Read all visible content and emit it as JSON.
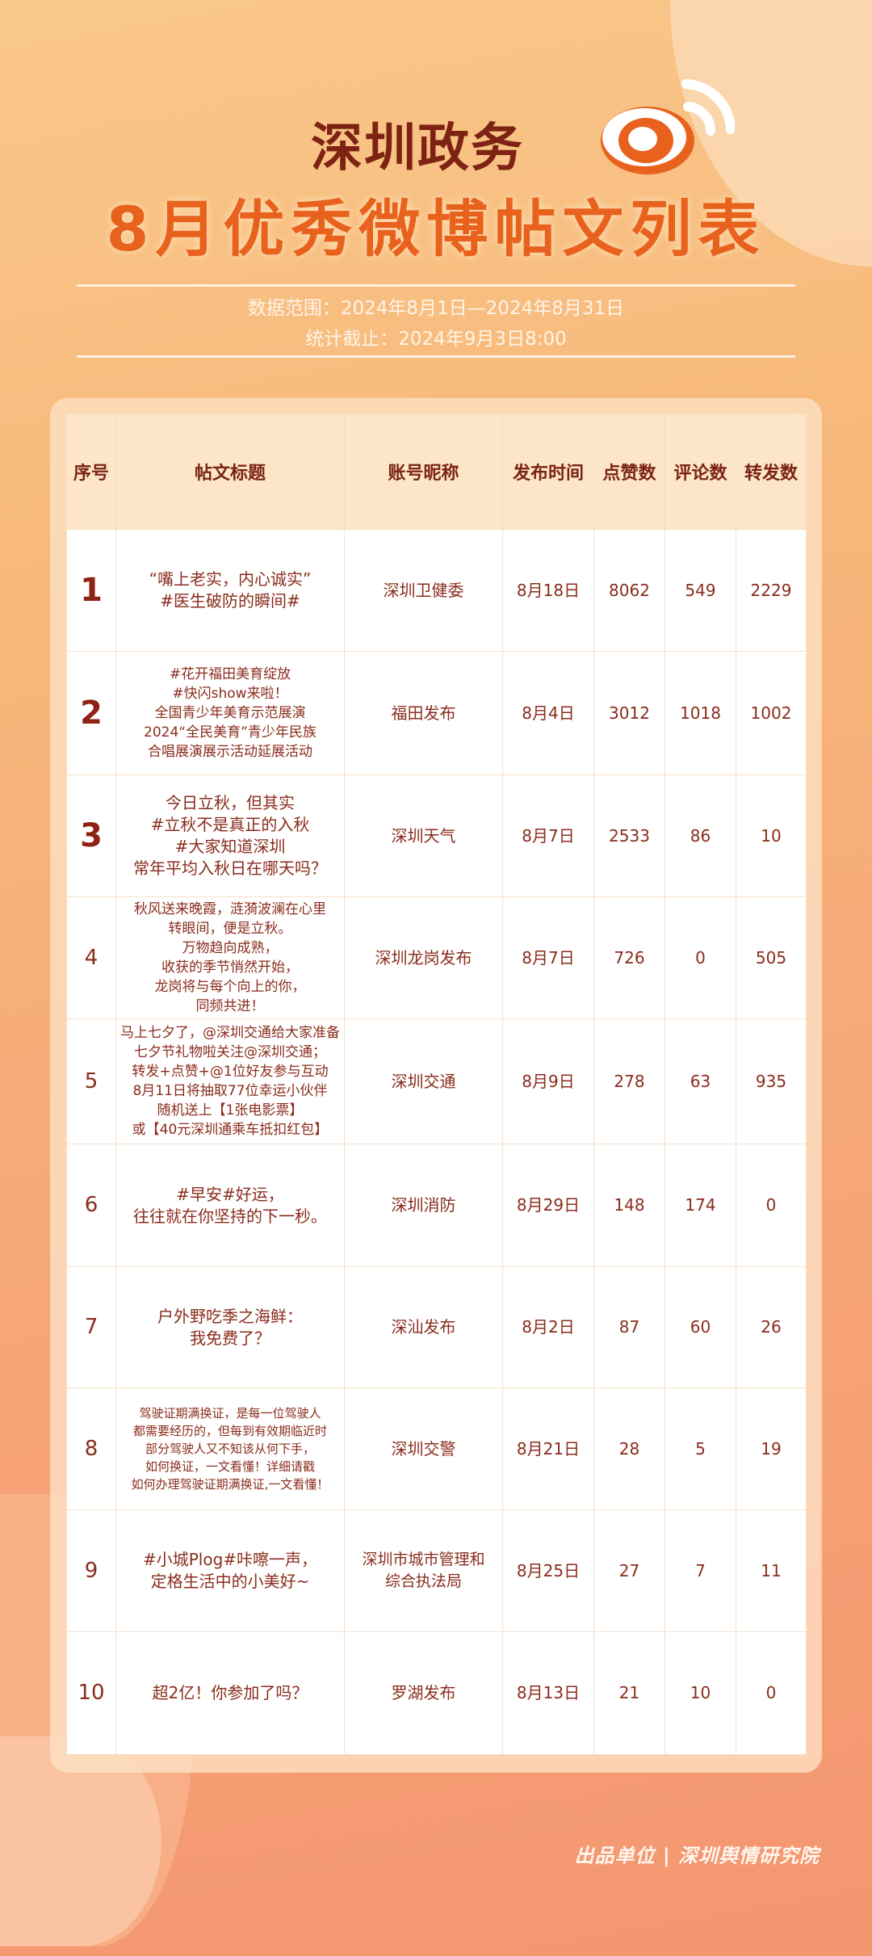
{
  "header": {
    "title_line1": "深圳政务",
    "title_line2": "8月优秀微博帖文列表",
    "data_range": "数据范围：2024年8月1日—2024年8月31日",
    "cutoff": "统计截止：2024年9月3日8:00"
  },
  "colors": {
    "accent": "#e8621e",
    "text": "#8a2c1c",
    "header_bg": "#fde6c8"
  },
  "table": {
    "columns": [
      "序号",
      "帖文标题",
      "账号昵称",
      "发布时间",
      "点赞数",
      "评论数",
      "转发数"
    ],
    "rows": [
      {
        "rank": "1",
        "title": "“嘴上老实，内心诚实”\n#医生破防的瞬间#",
        "account": "深圳卫健委",
        "date": "8月18日",
        "likes": "8062",
        "comments": "549",
        "reposts": "2229"
      },
      {
        "rank": "2",
        "title": "#花开福田美育绽放\n#快闪show来啦！\n全国青少年美育示范展演\n2024“全民美育”青少年民族\n合唱展演展示活动延展活动",
        "account": "福田发布",
        "date": "8月4日",
        "likes": "3012",
        "comments": "1018",
        "reposts": "1002"
      },
      {
        "rank": "3",
        "title": "今日立秋，但其实\n#立秋不是真正的入秋\n#大家知道深圳\n常年平均入秋日在哪天吗？",
        "account": "深圳天气",
        "date": "8月7日",
        "likes": "2533",
        "comments": "86",
        "reposts": "10"
      },
      {
        "rank": "4",
        "title": "秋风送来晚霞，涟漪波澜在心里\n转眼间，便是立秋。\n万物趋向成熟，\n收获的季节悄然开始，\n龙岗将与每个向上的你，\n同频共进！",
        "account": "深圳龙岗发布",
        "date": "8月7日",
        "likes": "726",
        "comments": "0",
        "reposts": "505"
      },
      {
        "rank": "5",
        "title": "马上七夕了，@深圳交通给大家准备\n七夕节礼物啦关注@深圳交通；\n转发+点赞+@1位好友参与互动\n8月11日将抽取77位幸运小伙伴\n随机送上【1张电影票】\n或【40元深圳通乘车抵扣红包】",
        "account": "深圳交通",
        "date": "8月9日",
        "likes": "278",
        "comments": "63",
        "reposts": "935"
      },
      {
        "rank": "6",
        "title": "#早安#好运，\n往往就在你坚持的下一秒。",
        "account": "深圳消防",
        "date": "8月29日",
        "likes": "148",
        "comments": "174",
        "reposts": "0"
      },
      {
        "rank": "7",
        "title": "户外野吃季之海鲜：\n我免费了？",
        "account": "深汕发布",
        "date": "8月2日",
        "likes": "87",
        "comments": "60",
        "reposts": "26"
      },
      {
        "rank": "8",
        "title": "驾驶证期满换证，是每一位驾驶人\n都需要经历的，但每到有效期临近时\n部分驾驶人又不知该从何下手，\n如何换证，一文看懂！详细请戳\n如何办理驾驶证期满换证,一文看懂！",
        "account": "深圳交警",
        "date": "8月21日",
        "likes": "28",
        "comments": "5",
        "reposts": "19"
      },
      {
        "rank": "9",
        "title": "#小城Plog#咔嚓一声，\n定格生活中的小美好~",
        "account": "深圳市城市管理和\n综合执法局",
        "date": "8月25日",
        "likes": "27",
        "comments": "7",
        "reposts": "11"
      },
      {
        "rank": "10",
        "title": "超2亿！你参加了吗？",
        "account": "罗湖发布",
        "date": "8月13日",
        "likes": "21",
        "comments": "10",
        "reposts": "0"
      }
    ]
  },
  "footer": {
    "credit": "出品单位 | 深圳舆情研究院"
  },
  "logo": {
    "icon": "weibo-logo-icon"
  }
}
